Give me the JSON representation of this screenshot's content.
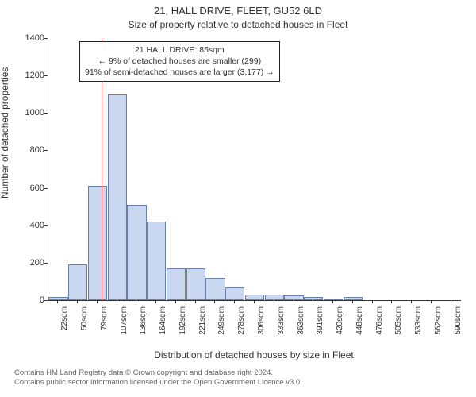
{
  "title": "21, HALL DRIVE, FLEET, GU52 6LD",
  "subtitle": "Size of property relative to detached houses in Fleet",
  "ylabel": "Number of detached properties",
  "xlabel": "Distribution of detached houses by size in Fleet",
  "callout": {
    "line1": "21 HALL DRIVE: 85sqm",
    "line2": "← 9% of detached houses are smaller (299)",
    "line3": "91% of semi-detached houses are larger (3,177) →"
  },
  "footer": {
    "line1": "Contains HM Land Registry data © Crown copyright and database right 2024.",
    "line2": "Contains public sector information licensed under the Open Government Licence v3.0."
  },
  "chart": {
    "type": "histogram",
    "bar_fill": "#c9d8f0",
    "bar_stroke": "#6a7fa8",
    "ref_line_color": "#d62222",
    "axis_color": "#333333",
    "background_color": "#ffffff",
    "label_fontsize": 12,
    "title_fontsize": 13,
    "tick_fontsize_y": 11,
    "tick_fontsize_x": 10,
    "ylim": [
      0,
      1400
    ],
    "ytick_step": 200,
    "ref_line_at_label": "85sqm",
    "x_category_labels": [
      "22sqm",
      "50sqm",
      "79sqm",
      "107sqm",
      "136sqm",
      "164sqm",
      "192sqm",
      "221sqm",
      "249sqm",
      "278sqm",
      "306sqm",
      "333sqm",
      "363sqm",
      "391sqm",
      "420sqm",
      "448sqm",
      "476sqm",
      "505sqm",
      "533sqm",
      "562sqm",
      "590sqm"
    ],
    "bars": [
      {
        "x_label": "22sqm",
        "value": 15
      },
      {
        "x_label": "50sqm",
        "value": 190
      },
      {
        "x_label": "79sqm",
        "value": 610
      },
      {
        "x_label": "107sqm",
        "value": 1100
      },
      {
        "x_label": "136sqm",
        "value": 510
      },
      {
        "x_label": "164sqm",
        "value": 420
      },
      {
        "x_label": "192sqm",
        "value": 170
      },
      {
        "x_label": "221sqm",
        "value": 170
      },
      {
        "x_label": "249sqm",
        "value": 120
      },
      {
        "x_label": "278sqm",
        "value": 70
      },
      {
        "x_label": "306sqm",
        "value": 30
      },
      {
        "x_label": "333sqm",
        "value": 30
      },
      {
        "x_label": "363sqm",
        "value": 25
      },
      {
        "x_label": "391sqm",
        "value": 15
      },
      {
        "x_label": "420sqm",
        "value": 10
      },
      {
        "x_label": "448sqm",
        "value": 15
      },
      {
        "x_label": "476sqm",
        "value": 0
      },
      {
        "x_label": "505sqm",
        "value": 0
      },
      {
        "x_label": "533sqm",
        "value": 0
      },
      {
        "x_label": "562sqm",
        "value": 0
      },
      {
        "x_label": "590sqm",
        "value": 0
      }
    ]
  }
}
